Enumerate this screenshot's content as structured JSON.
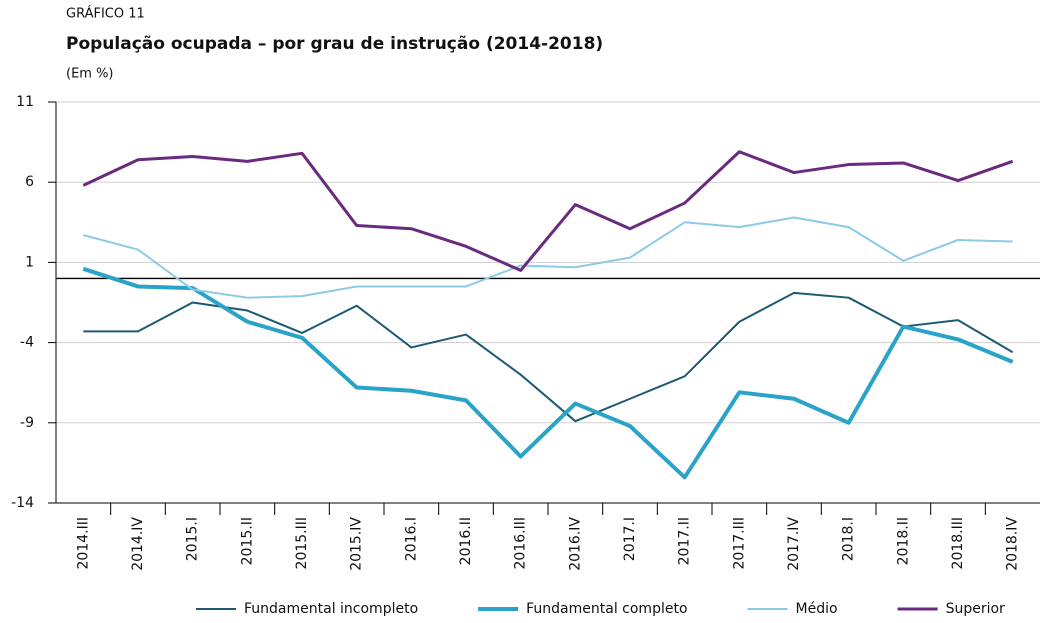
{
  "chart_data": {
    "type": "line",
    "kicker": "GRÁFICO 11",
    "title": "População ocupada – por grau de instrução (2014-2018)",
    "subtitle": "(Em %)",
    "categories": [
      "2014.III",
      "2014.IV",
      "2015.I",
      "2015.II",
      "2015.III",
      "2015.IV",
      "2016.I",
      "2016.II",
      "2016.III",
      "2016.IV",
      "2017.I",
      "2017.II",
      "2017.III",
      "2017.IV",
      "2018.I",
      "2018.II",
      "2018.III",
      "2018.IV"
    ],
    "series": [
      {
        "name": "Fundamental incompleto",
        "color": "#1b5a72",
        "width": 2,
        "values": [
          -3.3,
          -3.3,
          -1.5,
          -2.0,
          -3.4,
          -1.7,
          -4.3,
          -3.5,
          -6.0,
          -8.9,
          -7.5,
          -6.1,
          -2.7,
          -0.9,
          -1.2,
          -3.0,
          -2.6,
          -4.6
        ]
      },
      {
        "name": "Fundamental completo",
        "color": "#2aa3c8",
        "width": 4,
        "values": [
          0.6,
          -0.5,
          -0.6,
          -2.7,
          -3.7,
          -6.8,
          -7.0,
          -7.6,
          -11.1,
          -7.8,
          -9.2,
          -12.4,
          -7.1,
          -7.5,
          -9.0,
          -3.0,
          -3.8,
          -5.2
        ]
      },
      {
        "name": "Médio",
        "color": "#8ccbe6",
        "width": 2,
        "values": [
          2.7,
          1.8,
          -0.7,
          -1.2,
          -1.1,
          -0.5,
          -0.5,
          -0.5,
          0.8,
          0.7,
          1.3,
          3.5,
          3.2,
          3.8,
          3.2,
          1.1,
          2.4,
          2.3
        ]
      },
      {
        "name": "Superior",
        "color": "#6a2a7f",
        "width": 3,
        "values": [
          5.8,
          7.4,
          7.6,
          7.3,
          7.8,
          3.3,
          3.1,
          2.0,
          0.5,
          4.6,
          3.1,
          4.7,
          7.9,
          6.6,
          7.1,
          7.2,
          6.1,
          7.3
        ]
      }
    ],
    "ylim": [
      -14,
      11
    ],
    "yticks": [
      11,
      6,
      1,
      -4,
      -9,
      -14
    ],
    "grid": true
  }
}
